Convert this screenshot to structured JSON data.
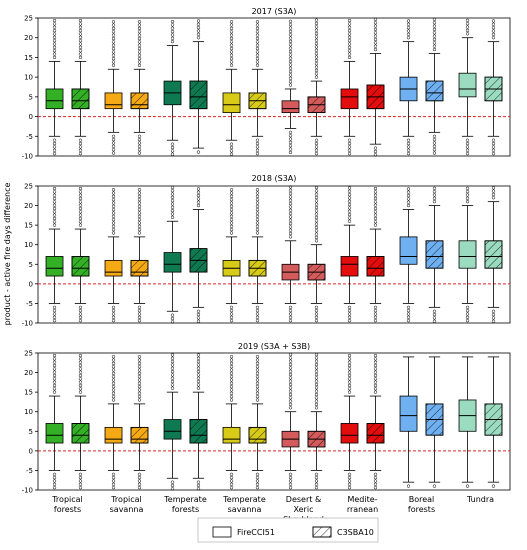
{
  "chart_data": {
    "type": "box",
    "ylabel": "product - active fire days difference",
    "ylim": [
      -10,
      25
    ],
    "yticks": [
      -10,
      -5,
      0,
      5,
      10,
      15,
      20,
      25
    ],
    "reference_line": 0,
    "categories": [
      "Tropical\nforests",
      "Tropical\nsavanna",
      "Temperate\nforests",
      "Temperate\nsavanna",
      "Desert &\nXeric\nShrubland",
      "Medite-\nrranean",
      "Boreal\nforests",
      "Tundra"
    ],
    "category_colors": [
      "#33b025",
      "#f5a915",
      "#0f7a52",
      "#d8cb17",
      "#d45b5b",
      "#e30d0d",
      "#6fb0f0",
      "#9bdcc0"
    ],
    "legend": [
      {
        "label": "FireCCI51",
        "hatched": false
      },
      {
        "label": "C3SBA10",
        "hatched": true
      }
    ],
    "panels": [
      {
        "title": "2017 (S3A)",
        "series": [
          {
            "name": "FireCCI51",
            "boxes": [
              {
                "whislo": -5,
                "q1": 2,
                "med": 4,
                "q3": 7,
                "whishi": 14
              },
              {
                "whislo": -4,
                "q1": 2,
                "med": 3,
                "q3": 6,
                "whishi": 12
              },
              {
                "whislo": -6,
                "q1": 3,
                "med": 6,
                "q3": 9,
                "whishi": 18
              },
              {
                "whislo": -6,
                "q1": 1,
                "med": 3,
                "q3": 6,
                "whishi": 12
              },
              {
                "whislo": -3,
                "q1": 1,
                "med": 2,
                "q3": 4,
                "whishi": 7
              },
              {
                "whislo": -5,
                "q1": 2,
                "med": 5,
                "q3": 7,
                "whishi": 14
              },
              {
                "whislo": -5,
                "q1": 4,
                "med": 7,
                "q3": 10,
                "whishi": 19
              },
              {
                "whislo": -5,
                "q1": 5,
                "med": 7,
                "q3": 11,
                "whishi": 20
              }
            ]
          },
          {
            "name": "C3SBA10",
            "boxes": [
              {
                "whislo": -5,
                "q1": 2,
                "med": 4,
                "q3": 7,
                "whishi": 14
              },
              {
                "whislo": -4,
                "q1": 2,
                "med": 3,
                "q3": 6,
                "whishi": 12
              },
              {
                "whislo": -8,
                "q1": 2,
                "med": 5,
                "q3": 9,
                "whishi": 19
              },
              {
                "whislo": -5,
                "q1": 2,
                "med": 4,
                "q3": 6,
                "whishi": 12
              },
              {
                "whislo": -5,
                "q1": 1,
                "med": 3,
                "q3": 5,
                "whishi": 9
              },
              {
                "whislo": -7,
                "q1": 2,
                "med": 5,
                "q3": 8,
                "whishi": 16
              },
              {
                "whislo": -4,
                "q1": 4,
                "med": 6,
                "q3": 9,
                "whishi": 16
              },
              {
                "whislo": -5,
                "q1": 4,
                "med": 7,
                "q3": 10,
                "whishi": 19
              }
            ]
          }
        ]
      },
      {
        "title": "2018 (S3A)",
        "series": [
          {
            "name": "FireCCI51",
            "boxes": [
              {
                "whislo": -5,
                "q1": 2,
                "med": 4,
                "q3": 7,
                "whishi": 14
              },
              {
                "whislo": -5,
                "q1": 2,
                "med": 3,
                "q3": 6,
                "whishi": 12
              },
              {
                "whislo": -7,
                "q1": 3,
                "med": 5,
                "q3": 8,
                "whishi": 16
              },
              {
                "whislo": -5,
                "q1": 2,
                "med": 4,
                "q3": 6,
                "whishi": 12
              },
              {
                "whislo": -5,
                "q1": 1,
                "med": 3,
                "q3": 5,
                "whishi": 11
              },
              {
                "whislo": -5,
                "q1": 2,
                "med": 5,
                "q3": 7,
                "whishi": 15
              },
              {
                "whislo": -5,
                "q1": 5,
                "med": 7,
                "q3": 12,
                "whishi": 19
              },
              {
                "whislo": -5,
                "q1": 4,
                "med": 7,
                "q3": 11,
                "whishi": 20
              }
            ]
          },
          {
            "name": "C3SBA10",
            "boxes": [
              {
                "whislo": -5,
                "q1": 2,
                "med": 4,
                "q3": 7,
                "whishi": 14
              },
              {
                "whislo": -5,
                "q1": 2,
                "med": 3,
                "q3": 6,
                "whishi": 12
              },
              {
                "whislo": -6,
                "q1": 3,
                "med": 6,
                "q3": 9,
                "whishi": 19
              },
              {
                "whislo": -5,
                "q1": 2,
                "med": 4,
                "q3": 6,
                "whishi": 12
              },
              {
                "whislo": -5,
                "q1": 1,
                "med": 3,
                "q3": 5,
                "whishi": 10
              },
              {
                "whislo": -5,
                "q1": 2,
                "med": 4,
                "q3": 7,
                "whishi": 14
              },
              {
                "whislo": -6,
                "q1": 4,
                "med": 7,
                "q3": 11,
                "whishi": 20
              },
              {
                "whislo": -6,
                "q1": 4,
                "med": 7,
                "q3": 11,
                "whishi": 21
              }
            ]
          }
        ]
      },
      {
        "title": "2019 (S3A + S3B)",
        "series": [
          {
            "name": "FireCCI51",
            "boxes": [
              {
                "whislo": -5,
                "q1": 2,
                "med": 4,
                "q3": 7,
                "whishi": 14
              },
              {
                "whislo": -5,
                "q1": 2,
                "med": 3,
                "q3": 6,
                "whishi": 12
              },
              {
                "whislo": -7,
                "q1": 3,
                "med": 5,
                "q3": 8,
                "whishi": 15
              },
              {
                "whislo": -5,
                "q1": 2,
                "med": 3,
                "q3": 6,
                "whishi": 12
              },
              {
                "whislo": -5,
                "q1": 1,
                "med": 3,
                "q3": 5,
                "whishi": 10
              },
              {
                "whislo": -5,
                "q1": 2,
                "med": 4,
                "q3": 7,
                "whishi": 14
              },
              {
                "whislo": -8,
                "q1": 5,
                "med": 9,
                "q3": 14,
                "whishi": 24
              },
              {
                "whislo": -8,
                "q1": 5,
                "med": 9,
                "q3": 13,
                "whishi": 24
              }
            ]
          },
          {
            "name": "C3SBA10",
            "boxes": [
              {
                "whislo": -5,
                "q1": 2,
                "med": 4,
                "q3": 7,
                "whishi": 14
              },
              {
                "whislo": -5,
                "q1": 2,
                "med": 3,
                "q3": 6,
                "whishi": 12
              },
              {
                "whislo": -7,
                "q1": 2,
                "med": 4,
                "q3": 8,
                "whishi": 15
              },
              {
                "whislo": -5,
                "q1": 2,
                "med": 3,
                "q3": 6,
                "whishi": 12
              },
              {
                "whislo": -5,
                "q1": 1,
                "med": 3,
                "q3": 5,
                "whishi": 10
              },
              {
                "whislo": -5,
                "q1": 2,
                "med": 4,
                "q3": 7,
                "whishi": 14
              },
              {
                "whislo": -8,
                "q1": 4,
                "med": 8,
                "q3": 12,
                "whishi": 24
              },
              {
                "whislo": -8,
                "q1": 4,
                "med": 8,
                "q3": 12,
                "whishi": 24
              }
            ]
          }
        ]
      }
    ]
  }
}
